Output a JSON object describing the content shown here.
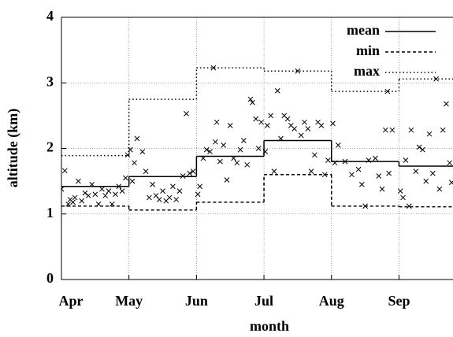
{
  "chart_data": {
    "type": "step",
    "xlabel": "month",
    "ylabel": "altitude (km)",
    "xlim": [
      0,
      5.8
    ],
    "ylim": [
      0,
      4
    ],
    "xticks": [
      {
        "value": 0,
        "label": "Apr"
      },
      {
        "value": 1,
        "label": "May"
      },
      {
        "value": 2,
        "label": "Jun"
      },
      {
        "value": 3,
        "label": "Jul"
      },
      {
        "value": 4,
        "label": "Aug"
      },
      {
        "value": 5,
        "label": "Sep"
      }
    ],
    "yticks": [
      0,
      1,
      2,
      3,
      4
    ],
    "grid": true,
    "legend": "upper right",
    "x": [
      0,
      1,
      2,
      3,
      4,
      5
    ],
    "series": [
      {
        "name": "mean",
        "color": "#000000",
        "style": "solid",
        "values": [
          1.42,
          1.57,
          1.88,
          2.12,
          1.8,
          1.73
        ]
      },
      {
        "name": "min",
        "color": "#000000",
        "style": "dashed",
        "values": [
          1.12,
          1.06,
          1.18,
          1.6,
          1.12,
          1.11
        ]
      },
      {
        "name": "max",
        "color": "#000000",
        "style": "dotted",
        "values": [
          1.89,
          2.75,
          3.23,
          3.18,
          2.87,
          3.06
        ]
      }
    ],
    "points": {
      "color": "#000000",
      "x": [
        0.0,
        0.05,
        0.1,
        0.13,
        0.17,
        0.2,
        0.25,
        0.3,
        0.35,
        0.4,
        0.45,
        0.5,
        0.55,
        0.6,
        0.65,
        0.7,
        0.75,
        0.8,
        0.85,
        0.9,
        0.95,
        0.98,
        1.02,
        1.05,
        1.08,
        1.12,
        1.2,
        1.25,
        1.3,
        1.35,
        1.4,
        1.45,
        1.5,
        1.55,
        1.6,
        1.65,
        1.7,
        1.75,
        1.8,
        1.85,
        1.9,
        1.95,
        2.02,
        2.05,
        2.1,
        2.15,
        2.2,
        2.25,
        2.28,
        2.3,
        2.35,
        2.4,
        2.45,
        2.5,
        2.55,
        2.6,
        2.65,
        2.7,
        2.75,
        2.8,
        2.83,
        2.88,
        2.92,
        2.96,
        3.02,
        3.05,
        3.1,
        3.15,
        3.2,
        3.25,
        3.3,
        3.35,
        3.4,
        3.45,
        3.5,
        3.55,
        3.6,
        3.65,
        3.7,
        3.75,
        3.8,
        3.85,
        3.9,
        3.95,
        4.02,
        4.05,
        4.1,
        4.2,
        4.3,
        4.4,
        4.45,
        4.5,
        4.55,
        4.65,
        4.7,
        4.75,
        4.8,
        4.83,
        4.85,
        4.9,
        5.02,
        5.06,
        5.1,
        5.15,
        5.18,
        5.25,
        5.3,
        5.35,
        5.4,
        5.45,
        5.5,
        5.55,
        5.6,
        5.65,
        5.7,
        5.75,
        5.78
      ],
      "y": [
        1.38,
        1.66,
        1.15,
        1.22,
        1.18,
        1.25,
        1.5,
        1.2,
        1.32,
        1.28,
        1.45,
        1.3,
        1.15,
        1.38,
        1.28,
        1.35,
        1.15,
        1.3,
        1.42,
        1.35,
        1.55,
        1.9,
        1.98,
        1.5,
        1.78,
        2.15,
        1.95,
        1.65,
        1.25,
        1.45,
        1.28,
        1.22,
        1.35,
        1.2,
        1.25,
        1.42,
        1.22,
        1.35,
        1.58,
        2.53,
        1.62,
        1.65,
        1.3,
        1.42,
        1.85,
        1.98,
        1.95,
        3.23,
        2.1,
        2.4,
        1.8,
        2.05,
        1.52,
        2.35,
        1.85,
        1.78,
        1.98,
        2.12,
        1.75,
        2.75,
        2.7,
        2.45,
        2.0,
        2.4,
        1.95,
        2.35,
        2.5,
        1.65,
        2.88,
        2.15,
        2.5,
        2.45,
        2.35,
        2.3,
        3.18,
        2.2,
        2.4,
        2.3,
        1.65,
        1.9,
        2.4,
        2.35,
        1.6,
        1.82,
        2.38,
        1.78,
        2.05,
        1.8,
        1.6,
        1.68,
        1.45,
        1.12,
        1.82,
        1.85,
        1.58,
        1.38,
        2.28,
        2.87,
        1.62,
        2.28,
        1.35,
        1.25,
        1.82,
        1.12,
        2.28,
        1.65,
        2.02,
        1.98,
        1.5,
        2.22,
        1.62,
        3.06,
        1.38,
        2.28,
        2.68,
        1.78,
        1.48
      ]
    }
  }
}
